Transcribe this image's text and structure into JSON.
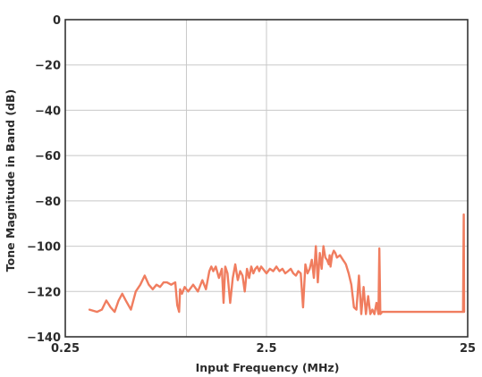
{
  "chart_data": {
    "type": "line",
    "title": "",
    "xlabel": "Input Frequency (MHz)",
    "ylabel": "Tone Magnitude in Band (dB)",
    "x_scale": "log",
    "xlim": [
      0.25,
      25
    ],
    "ylim": [
      -140,
      0
    ],
    "x_ticks": [
      0.25,
      2.5,
      25
    ],
    "x_tick_labels": [
      "0.25",
      "2.5",
      "25"
    ],
    "x_minor_gridlines": [
      1.0
    ],
    "y_ticks": [
      0,
      -20,
      -40,
      -60,
      -80,
      -100,
      -120,
      -140
    ],
    "y_tick_labels": [
      "0",
      "−20",
      "−40",
      "−60",
      "−80",
      "−100",
      "−120",
      "−140"
    ],
    "grid": true,
    "legend": "none",
    "line_color": "#f07d5f",
    "series": [
      {
        "x": [
          0.33,
          0.36,
          0.38,
          0.4,
          0.42,
          0.44,
          0.46,
          0.48,
          0.5,
          0.53,
          0.56,
          0.59,
          0.62,
          0.65,
          0.68,
          0.71,
          0.74,
          0.77,
          0.8,
          0.84,
          0.88,
          0.9,
          0.92,
          0.93,
          0.95,
          0.98,
          1.02,
          1.08,
          1.14,
          1.2,
          1.25,
          1.3,
          1.33,
          1.36,
          1.38,
          1.4,
          1.45,
          1.5,
          1.53,
          1.56,
          1.6,
          1.65,
          1.7,
          1.75,
          1.8,
          1.85,
          1.9,
          1.95,
          2.0,
          2.05,
          2.1,
          2.15,
          2.2,
          2.25,
          2.3,
          2.35,
          2.4,
          2.5,
          2.6,
          2.7,
          2.8,
          2.9,
          3.0,
          3.1,
          3.2,
          3.3,
          3.4,
          3.5,
          3.6,
          3.7,
          3.8,
          3.9,
          4.0,
          4.1,
          4.2,
          4.3,
          4.4,
          4.5,
          4.6,
          4.7,
          4.8,
          4.9,
          5.0,
          5.1,
          5.15,
          5.2,
          5.3,
          5.4,
          5.5,
          5.6,
          5.8,
          6.0,
          6.1,
          6.2,
          6.4,
          6.6,
          6.8,
          7.0,
          7.2,
          7.4,
          7.6,
          7.8,
          8.0,
          8.2,
          8.4,
          8.6,
          8.8,
          9.0,
          9.1,
          9.2,
          9.4,
          9.6,
          9.8,
          10.0,
          10.1,
          10.2,
          10.4,
          10.5,
          10.6,
          10.8,
          11.0,
          11.2,
          11.3,
          11.4,
          11.5,
          11.6,
          11.8,
          12.0,
          12.5,
          13.0,
          14.0,
          16.0,
          18.0,
          20.0,
          22.0,
          23.0,
          23.7,
          23.8,
          23.9,
          24.0
        ],
        "y": [
          -128,
          -129,
          -128,
          -124,
          -127,
          -129,
          -124,
          -121,
          -124,
          -128,
          -120,
          -117,
          -113,
          -117,
          -119,
          -117,
          -118,
          -116,
          -116,
          -117,
          -116,
          -126,
          -129,
          -119,
          -121,
          -118,
          -120,
          -117,
          -120,
          -115,
          -119,
          -111,
          -109,
          -111,
          -110,
          -109,
          -114,
          -110,
          -125,
          -109,
          -112,
          -125,
          -114,
          -108,
          -115,
          -111,
          -113,
          -120,
          -110,
          -114,
          -109,
          -112,
          -110,
          -109,
          -111,
          -109,
          -110,
          -112,
          -110,
          -111,
          -109,
          -111,
          -110,
          -112,
          -111,
          -110,
          -112,
          -113,
          -111,
          -112,
          -127,
          -108,
          -112,
          -110,
          -106,
          -114,
          -100,
          -116,
          -103,
          -110,
          -100,
          -105,
          -106,
          -108,
          -104,
          -109,
          -104,
          -102,
          -103,
          -105,
          -104,
          -106,
          -107,
          -108,
          -112,
          -117,
          -127,
          -128,
          -113,
          -130,
          -118,
          -130,
          -122,
          -130,
          -128,
          -130,
          -125,
          -130,
          -101,
          -130,
          -129,
          -129,
          -129,
          -129,
          -129,
          -129,
          -129,
          -129,
          -129,
          -129,
          -129,
          -129,
          -129,
          -129,
          -129,
          -129,
          -129,
          -129,
          -129,
          -129,
          -129,
          -129,
          -129,
          -129,
          -129,
          -129,
          -129,
          -106,
          -86,
          -129
        ]
      }
    ]
  }
}
